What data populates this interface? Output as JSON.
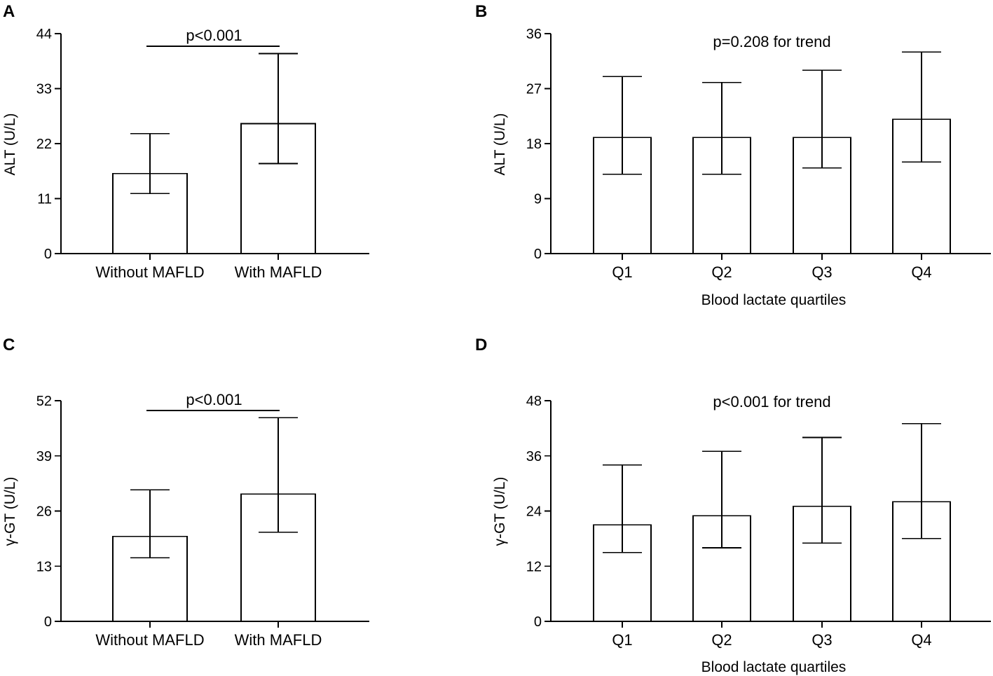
{
  "chart_data": [
    {
      "panel": "A",
      "type": "bar",
      "categories": [
        "Without MAFLD",
        "With MAFLD"
      ],
      "values": [
        16,
        26
      ],
      "error_low": [
        12,
        18
      ],
      "error_high": [
        24,
        40
      ],
      "ylabel": "ALT (U/L)",
      "xlabel": "",
      "yticks": [
        0,
        11,
        22,
        33,
        44
      ],
      "ylim": [
        0,
        44
      ],
      "annotation": "p<0.001",
      "annotation_style": "bracket"
    },
    {
      "panel": "B",
      "type": "bar",
      "categories": [
        "Q1",
        "Q2",
        "Q3",
        "Q4"
      ],
      "values": [
        19,
        19,
        19,
        22
      ],
      "error_low": [
        13,
        13,
        14,
        15
      ],
      "error_high": [
        29,
        28,
        30,
        33
      ],
      "ylabel": "ALT (U/L)",
      "xlabel": "Blood lactate quartiles",
      "yticks": [
        0,
        9,
        18,
        27,
        36
      ],
      "ylim": [
        0,
        36
      ],
      "annotation": "p=0.208 for trend",
      "annotation_style": "text"
    },
    {
      "panel": "C",
      "type": "bar",
      "categories": [
        "Without MAFLD",
        "With MAFLD"
      ],
      "values": [
        20,
        30
      ],
      "error_low": [
        15,
        21
      ],
      "error_high": [
        31,
        48
      ],
      "ylabel": "γ-GT (U/L)",
      "xlabel": "",
      "yticks": [
        0,
        13,
        26,
        39,
        52
      ],
      "ylim": [
        0,
        52
      ],
      "annotation": "p<0.001",
      "annotation_style": "bracket"
    },
    {
      "panel": "D",
      "type": "bar",
      "categories": [
        "Q1",
        "Q2",
        "Q3",
        "Q4"
      ],
      "values": [
        21,
        23,
        25,
        26
      ],
      "error_low": [
        15,
        16,
        17,
        18
      ],
      "error_high": [
        34,
        37,
        40,
        43
      ],
      "ylabel": "γ-GT (U/L)",
      "xlabel": "Blood lactate quartiles",
      "yticks": [
        0,
        12,
        24,
        36,
        48
      ],
      "ylim": [
        0,
        48
      ],
      "annotation": "p<0.001 for trend",
      "annotation_style": "text"
    }
  ]
}
